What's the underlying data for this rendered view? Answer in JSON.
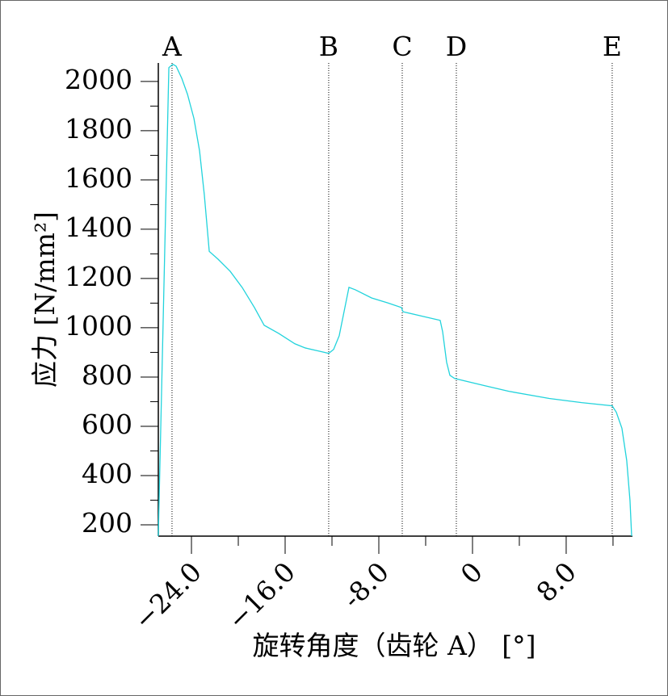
{
  "chart_data": {
    "type": "line",
    "x_label": "旋转角度（齿轮 A） [°]",
    "y_label": "应力 [N/mm²]",
    "x": [
      -26.83,
      -25.93,
      -25.59,
      -25.31,
      -24.83,
      -24.34,
      -23.79,
      -23.31,
      -22.9,
      -22.48,
      -21.72,
      -20.69,
      -19.66,
      -18.62,
      -17.79,
      -16.55,
      -15.17,
      -14.28,
      -13.1,
      -12.28,
      -11.86,
      -11.38,
      -10.83,
      -10.55,
      -10.0,
      -8.62,
      -7.24,
      -6.07,
      -5.93,
      -4.48,
      -2.76,
      -2.55,
      -2.21,
      -1.93,
      -1.52,
      1.03,
      3.1,
      6.55,
      9.31,
      11.93,
      12.28,
      12.76,
      13.17,
      13.45,
      13.59
    ],
    "series": [
      {
        "color": "#22d3dc",
        "values": [
          154,
          2056,
          2070,
          2062,
          2013,
          1948,
          1850,
          1719,
          1539,
          1310,
          1278,
          1229,
          1163,
          1082,
          1010,
          977,
          935,
          918,
          905,
          896,
          912,
          968,
          1098,
          1164,
          1154,
          1121,
          1101,
          1082,
          1065,
          1049,
          1030,
          984,
          860,
          807,
          794,
          765,
          742,
          713,
          696,
          683,
          657,
          592,
          461,
          298,
          154
        ]
      }
    ],
    "xlim": [
      -26.83,
      13.66
    ],
    "ylim": [
      154,
      2075
    ],
    "xticks": [
      {
        "value": -24,
        "label": "−24.0"
      },
      {
        "value": -16,
        "label": "−16.0"
      },
      {
        "value": -8,
        "label": "-8.0"
      },
      0,
      {
        "value": 8,
        "label": "8.0"
      }
    ],
    "xminorticks": [
      -20,
      -12,
      -4,
      4,
      12
    ],
    "yticks": [
      200,
      400,
      600,
      800,
      1000,
      1200,
      1400,
      1600,
      1800,
      2000
    ],
    "yminorticks": [
      300,
      500,
      700,
      900,
      1100,
      1300,
      1500,
      1700,
      1900
    ],
    "markers": [
      {
        "label": "A",
        "x": -25.66
      },
      {
        "label": "B",
        "x": -12.28
      },
      {
        "label": "C",
        "x": -6.0
      },
      {
        "label": "D",
        "x": -1.38
      },
      {
        "label": "E",
        "x": 11.93
      }
    ]
  }
}
